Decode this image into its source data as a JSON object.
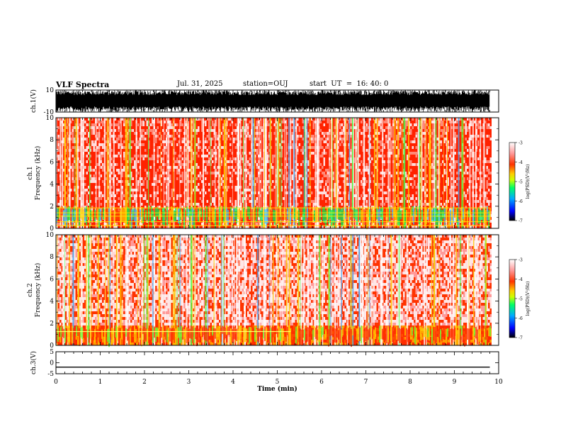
{
  "header": {
    "title": "VLF Spectra",
    "date": "Jul. 31, 2025",
    "station": "station=OUJ",
    "start": "start  UT  =  16: 40: 0"
  },
  "colors": {
    "spectrum_scale": [
      "#000000",
      "#0000ff",
      "#00aaff",
      "#00ff66",
      "#ccff00",
      "#ffcc00",
      "#ff3300",
      "#ff9999",
      "#ffffff"
    ],
    "axis": "#000000"
  },
  "chart_data": [
    {
      "type": "line",
      "panel": "waveform-ch1",
      "ylabel": "ch.1(V)",
      "ylim": [
        -10,
        10
      ],
      "yticks": [
        10,
        -10
      ],
      "xlim": [
        0,
        10
      ],
      "description_values": {
        "amplitude_range": [
          -10,
          10
        ],
        "mean_level": 0
      }
    },
    {
      "type": "heatmap",
      "panel": "spectrogram-ch1",
      "ylabel_line1": "ch.1",
      "ylabel_line2": "Frequency (kHz)",
      "ylim": [
        0,
        10
      ],
      "yticks": [
        0,
        2,
        4,
        6,
        8,
        10
      ],
      "xlim": [
        0,
        10
      ],
      "data_end_min": 9.8,
      "colorbar": {
        "label": "log(PSD)(V²/Hz)",
        "min": -7,
        "max": -3,
        "ticks": [
          -3,
          -4,
          -5,
          -6,
          -7
        ]
      }
    },
    {
      "type": "heatmap",
      "panel": "spectrogram-ch2",
      "ylabel_line1": "ch.2",
      "ylabel_line2": "Frequency (kHz)",
      "ylim": [
        0,
        10
      ],
      "yticks": [
        0,
        2,
        4,
        6,
        8,
        10
      ],
      "xlim": [
        0,
        10
      ],
      "data_end_min": 9.8,
      "colorbar": {
        "label": "log(PSD)(V²/Hz)",
        "min": -7,
        "max": -3,
        "ticks": [
          -3,
          -4,
          -5,
          -6,
          -7
        ]
      }
    },
    {
      "type": "line",
      "panel": "waveform-ch3",
      "ylabel": "ch.3(V)",
      "ylim": [
        -5,
        5
      ],
      "yticks": [
        5,
        0,
        -5
      ],
      "x": [
        0,
        9.8
      ],
      "y": [
        -2,
        -2
      ],
      "xlim": [
        0,
        10
      ],
      "xlabel": "Time (min)",
      "xticks": [
        0,
        1,
        2,
        3,
        4,
        5,
        6,
        7,
        8,
        9,
        10
      ]
    }
  ]
}
